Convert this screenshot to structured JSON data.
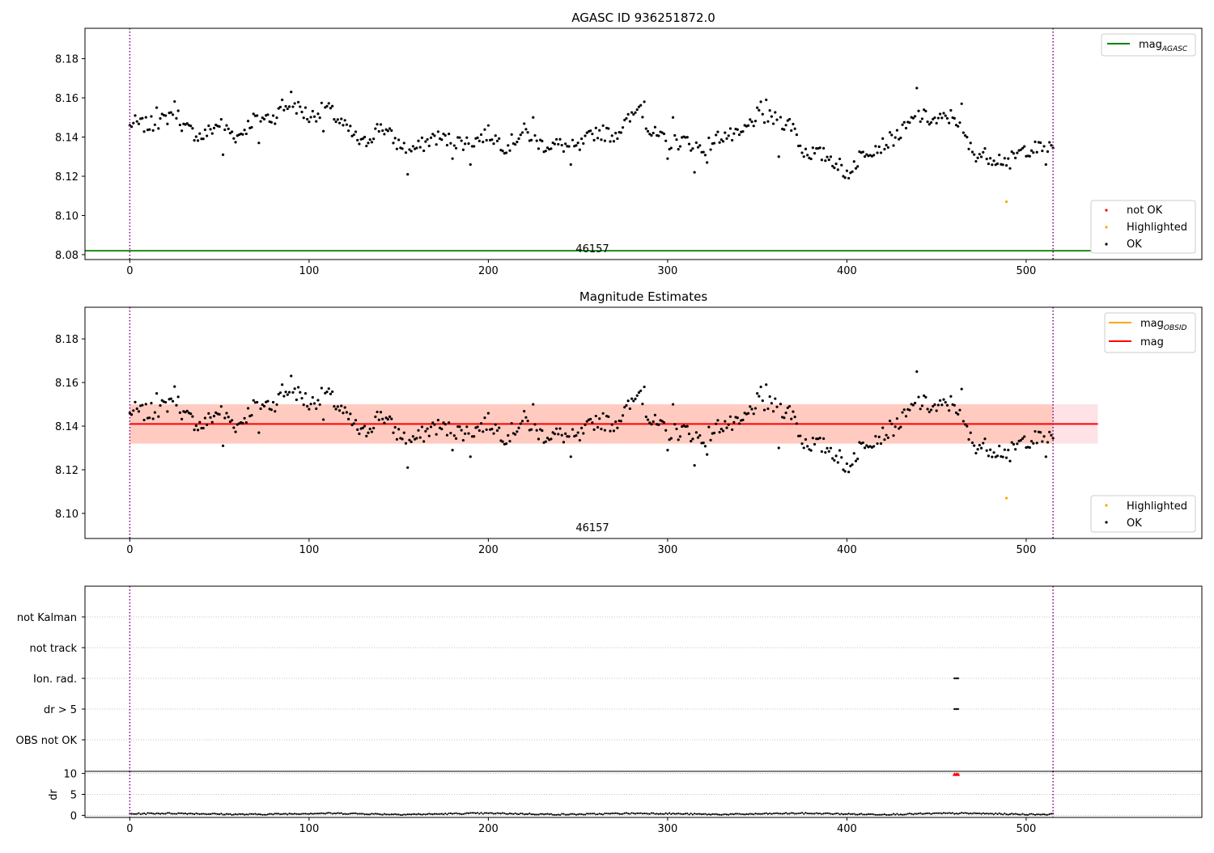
{
  "chart_data": [
    {
      "type": "scatter",
      "title": "AGASC ID 936251872.0",
      "xlabel": "",
      "ylabel": "",
      "xlim": [
        -25,
        598
      ],
      "ylim": [
        8.0775,
        8.1955
      ],
      "xticks": [
        "0",
        "100",
        "200",
        "300",
        "400",
        "500"
      ],
      "yticks": [
        "8.08",
        "8.10",
        "8.12",
        "8.14",
        "8.16",
        "8.18"
      ],
      "grid": false,
      "vlines": [
        0,
        515
      ],
      "lines": [
        {
          "name": "mag",
          "subscript": "AGASC",
          "y": 8.082,
          "x": [
            -25,
            540
          ],
          "color": "#008000"
        }
      ],
      "annotation": {
        "text": "46157",
        "x": 257,
        "y": 8.082
      },
      "legends": [
        {
          "placement": "top-right",
          "entries": [
            {
              "label": "mag",
              "subscript": "AGASC",
              "kind": "line",
              "color": "#008000"
            }
          ]
        },
        {
          "placement": "bottom-right",
          "entries": [
            {
              "label": "not OK",
              "kind": "dot",
              "color": "#ff0000"
            },
            {
              "label": "Highlighted",
              "kind": "dot",
              "color": "#ffa500"
            },
            {
              "label": "OK",
              "kind": "dot",
              "color": "#000000"
            }
          ]
        }
      ],
      "series": [
        {
          "name": "OK",
          "color": "#000000",
          "x_start": 0,
          "x_end": 515,
          "count": 516,
          "anchors": [
            [
              0,
              8.147
            ],
            [
              10,
              8.146
            ],
            [
              20,
              8.149
            ],
            [
              25,
              8.155
            ],
            [
              30,
              8.145
            ],
            [
              40,
              8.14
            ],
            [
              50,
              8.147
            ],
            [
              60,
              8.14
            ],
            [
              70,
              8.15
            ],
            [
              80,
              8.15
            ],
            [
              90,
              8.158
            ],
            [
              100,
              8.15
            ],
            [
              110,
              8.155
            ],
            [
              120,
              8.145
            ],
            [
              130,
              8.136
            ],
            [
              140,
              8.146
            ],
            [
              150,
              8.136
            ],
            [
              160,
              8.134
            ],
            [
              170,
              8.14
            ],
            [
              180,
              8.138
            ],
            [
              190,
              8.137
            ],
            [
              200,
              8.142
            ],
            [
              210,
              8.135
            ],
            [
              220,
              8.143
            ],
            [
              230,
              8.136
            ],
            [
              240,
              8.136
            ],
            [
              250,
              8.134
            ],
            [
              260,
              8.143
            ],
            [
              270,
              8.141
            ],
            [
              280,
              8.15
            ],
            [
              285,
              8.156
            ],
            [
              290,
              8.143
            ],
            [
              300,
              8.137
            ],
            [
              310,
              8.138
            ],
            [
              320,
              8.134
            ],
            [
              330,
              8.141
            ],
            [
              340,
              8.14
            ],
            [
              350,
              8.151
            ],
            [
              360,
              8.149
            ],
            [
              370,
              8.146
            ],
            [
              375,
              8.133
            ],
            [
              390,
              8.13
            ],
            [
              400,
              8.122
            ],
            [
              410,
              8.133
            ],
            [
              420,
              8.136
            ],
            [
              430,
              8.142
            ],
            [
              440,
              8.151
            ],
            [
              450,
              8.148
            ],
            [
              460,
              8.151
            ],
            [
              470,
              8.132
            ],
            [
              480,
              8.13
            ],
            [
              490,
              8.128
            ],
            [
              500,
              8.134
            ],
            [
              515,
              8.134
            ]
          ],
          "outliers": [
            [
              0,
              8.146
            ],
            [
              3,
              8.151
            ],
            [
              15,
              8.155
            ],
            [
              52,
              8.131
            ],
            [
              72,
              8.137
            ],
            [
              85,
              8.159
            ],
            [
              90,
              8.163
            ],
            [
              98,
              8.155
            ],
            [
              108,
              8.143
            ],
            [
              155,
              8.121
            ],
            [
              180,
              8.129
            ],
            [
              190,
              8.126
            ],
            [
              225,
              8.15
            ],
            [
              246,
              8.126
            ],
            [
              283,
              8.154
            ],
            [
              287,
              8.158
            ],
            [
              300,
              8.129
            ],
            [
              303,
              8.15
            ],
            [
              315,
              8.122
            ],
            [
              322,
              8.127
            ],
            [
              352,
              8.158
            ],
            [
              355,
              8.159
            ],
            [
              362,
              8.13
            ],
            [
              398,
              8.12
            ],
            [
              401,
              8.119
            ],
            [
              406,
              8.125
            ],
            [
              439,
              8.165
            ],
            [
              464,
              8.157
            ],
            [
              491,
              8.124
            ],
            [
              511,
              8.126
            ]
          ]
        },
        {
          "name": "Highlighted",
          "color": "#ffa500",
          "points": [
            [
              489,
              8.107
            ]
          ]
        }
      ]
    },
    {
      "type": "scatter",
      "title": "Magnitude Estimates",
      "xlabel": "",
      "ylabel": "",
      "xlim": [
        -25,
        598
      ],
      "ylim": [
        8.0885,
        8.1945
      ],
      "xticks": [
        "0",
        "100",
        "200",
        "300",
        "400",
        "500"
      ],
      "yticks": [
        "8.10",
        "8.12",
        "8.14",
        "8.16",
        "8.18"
      ],
      "grid": false,
      "vlines": [
        0,
        515
      ],
      "bands": [
        {
          "y": [
            8.132,
            8.15
          ],
          "x": [
            0,
            540
          ],
          "color": "#ffb6c1"
        }
      ],
      "lines": [
        {
          "name": "mag",
          "y": 8.141,
          "x": [
            -25,
            540
          ],
          "color": "#ff0000"
        }
      ],
      "annotation": {
        "text": "46157",
        "x": 257,
        "y": 8.0885
      },
      "legends": [
        {
          "placement": "top-right",
          "entries": [
            {
              "label": "mag",
              "subscript": "OBSID",
              "kind": "line",
              "color": "#ffa500"
            },
            {
              "label": "mag",
              "subscript": "",
              "kind": "line",
              "color": "#ff0000"
            }
          ]
        },
        {
          "placement": "bottom-right",
          "entries": [
            {
              "label": "Highlighted",
              "kind": "dot",
              "color": "#ffa500"
            },
            {
              "label": "OK",
              "kind": "dot",
              "color": "#000000"
            }
          ]
        }
      ],
      "series": [
        {
          "name": "OK",
          "color": "#000000",
          "same_as_panel": 0
        },
        {
          "name": "Highlighted",
          "color": "#ffa500",
          "points": [
            [
              489,
              8.107
            ]
          ]
        }
      ]
    },
    {
      "type": "scatter",
      "title": "",
      "xlabel": "",
      "ylabel": "",
      "xlim": [
        -25,
        598
      ],
      "xticks": [],
      "yticks": [
        "not Kalman",
        "not track",
        "Ion. rad.",
        "dr > 5",
        "OBS not OK"
      ],
      "grid": true,
      "vlines": [
        0,
        515
      ],
      "series": [
        {
          "name": "Ion. rad.",
          "color": "#000000",
          "points": [
            [
              460,
              2
            ],
            [
              461,
              2
            ],
            [
              462,
              2
            ]
          ]
        },
        {
          "name": "dr > 5",
          "color": "#000000",
          "points": [
            [
              460,
              1
            ],
            [
              461,
              1
            ],
            [
              462,
              1
            ]
          ]
        }
      ]
    },
    {
      "type": "scatter",
      "title": "",
      "xlabel": "",
      "ylabel": "dr",
      "xlim": [
        -25,
        598
      ],
      "ylim": [
        -0.5,
        10.5
      ],
      "xticks": [
        "0",
        "100",
        "200",
        "300",
        "400",
        "500"
      ],
      "yticks": [
        "0",
        "5",
        "10"
      ],
      "grid": true,
      "vlines": [
        0,
        515
      ],
      "series": [
        {
          "name": "dr",
          "color": "#000000",
          "x_start": 0,
          "x_end": 515,
          "count": 516,
          "base": 0.35,
          "spread": 0.3
        },
        {
          "name": "dr > 5",
          "color": "#ff0000",
          "points": [
            [
              460,
              9.8
            ],
            [
              461,
              9.8
            ],
            [
              462,
              9.8
            ]
          ]
        }
      ]
    }
  ]
}
